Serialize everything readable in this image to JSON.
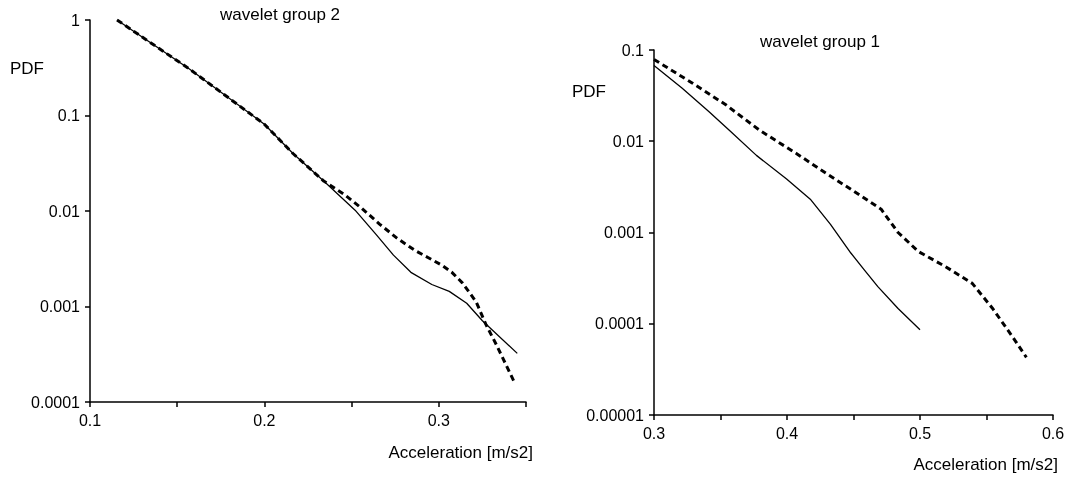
{
  "chart_data": [
    {
      "type": "line",
      "title": "wavelet group 2",
      "xlabel": "Acceleration [m/s2]",
      "ylabel": "PDF",
      "log": "y",
      "marker": "none",
      "xlim": [
        0.1,
        0.35
      ],
      "xticks": [
        0.1,
        {
          "value": 0.15,
          "label": null
        },
        0.2,
        {
          "value": 0.25,
          "label": null
        },
        0.3,
        {
          "value": 0.35,
          "label": null
        }
      ],
      "ylim": [
        0.0001,
        1
      ],
      "yticks": [
        0.0001,
        0.001,
        0.01,
        0.1,
        1
      ],
      "series": [
        {
          "color": "#000000",
          "line_style": "solid",
          "x": [
            0.1155,
            0.157,
            0.2,
            0.2164,
            0.234,
            0.252,
            0.264,
            0.274,
            0.284,
            0.296,
            0.306,
            0.316,
            0.325,
            0.345
          ],
          "values": [
            1,
            0.307,
            0.081,
            0.04,
            0.0206,
            0.0102,
            0.0057,
            0.00345,
            0.00228,
            0.0017,
            0.00144,
            0.00108,
            0.00071,
            0.000323
          ]
        },
        {
          "color": "#000000",
          "line_style": "dashed",
          "x": [
            0.1155,
            0.157,
            0.2,
            0.2164,
            0.234,
            0.246,
            0.256,
            0.266,
            0.276,
            0.286,
            0.294,
            0.302,
            0.3075,
            0.3135,
            0.3214,
            0.327,
            0.333,
            0.343
          ],
          "values": [
            1,
            0.307,
            0.081,
            0.04,
            0.0206,
            0.0148,
            0.0106,
            0.0073,
            0.0052,
            0.0039,
            0.00324,
            0.00269,
            0.00228,
            0.00177,
            0.00112,
            0.00065,
            0.000398,
            0.000166
          ]
        }
      ]
    },
    {
      "type": "line",
      "title": "wavelet group 1",
      "xlabel": "Acceleration [m/s2]",
      "ylabel": "PDF",
      "log": "y",
      "marker": "none",
      "xlim": [
        0.3,
        0.6
      ],
      "xticks": [
        0.3,
        {
          "value": 0.35,
          "label": null
        },
        0.4,
        {
          "value": 0.45,
          "label": null
        },
        0.5,
        {
          "value": 0.55,
          "label": null
        },
        0.6
      ],
      "ylim": [
        1e-05,
        0.1
      ],
      "yticks": [
        {
          "value": 1e-05,
          "label": "0.00001"
        },
        0.0001,
        0.001,
        0.01,
        0.1
      ],
      "series": [
        {
          "color": "#000000",
          "line_style": "solid",
          "x": [
            0.3,
            0.321,
            0.3414,
            0.3566,
            0.377,
            0.3997,
            0.4175,
            0.4327,
            0.448,
            0.4581,
            0.4683,
            0.4835,
            0.5
          ],
          "values": [
            0.0676,
            0.0383,
            0.0211,
            0.0132,
            0.007,
            0.00386,
            0.00232,
            0.00123,
            0.000596,
            0.000389,
            0.000255,
            0.000147,
            8.59e-05
          ]
        },
        {
          "color": "#000000",
          "line_style": "dashed",
          "x": [
            0.3,
            0.3287,
            0.354,
            0.3794,
            0.4073,
            0.4302,
            0.4556,
            0.4708,
            0.4835,
            0.4987,
            0.519,
            0.5393,
            0.5546,
            0.5698,
            0.58
          ],
          "values": [
            0.0788,
            0.0435,
            0.0251,
            0.0132,
            0.0073,
            0.00438,
            0.00252,
            0.0018,
            0.001,
            0.00062,
            0.000424,
            0.000277,
            0.000147,
            7.11e-05,
            4.28e-05
          ]
        }
      ]
    }
  ]
}
